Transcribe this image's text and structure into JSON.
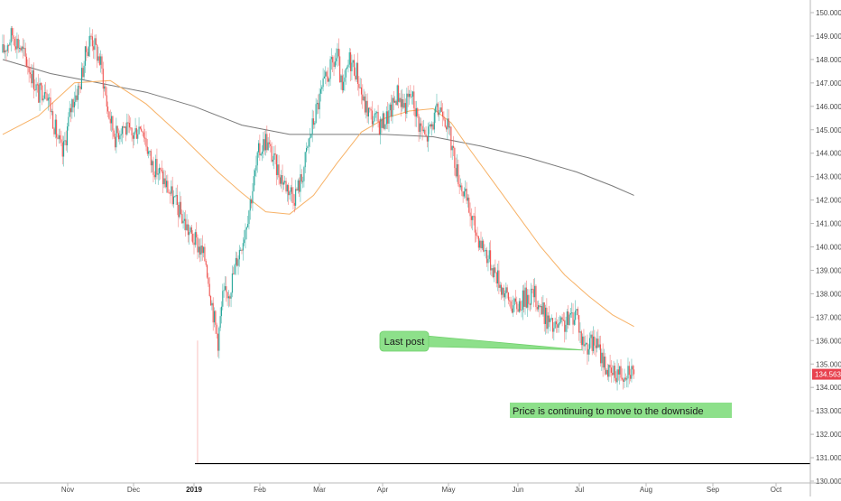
{
  "chart_data": {
    "type": "candlestick",
    "y_axis": {
      "ticks": [
        "150.000",
        "149.000",
        "148.000",
        "147.000",
        "146.000",
        "145.000",
        "144.000",
        "143.000",
        "142.000",
        "141.000",
        "140.000",
        "139.000",
        "138.000",
        "137.000",
        "136.000",
        "135.000",
        "134.000",
        "133.000",
        "132.000",
        "131.000",
        "130.000"
      ],
      "range": [
        129.6,
        150.4
      ],
      "position": "right"
    },
    "x_axis": {
      "labels": [
        {
          "text": "Nov",
          "bold": false
        },
        {
          "text": "Dec",
          "bold": false
        },
        {
          "text": "2019",
          "bold": true
        },
        {
          "text": "Feb",
          "bold": false
        },
        {
          "text": "Mar",
          "bold": false
        },
        {
          "text": "Apr",
          "bold": false
        },
        {
          "text": "May",
          "bold": false
        },
        {
          "text": "Jun",
          "bold": false
        },
        {
          "text": "Jul",
          "bold": false
        },
        {
          "text": "Aug",
          "bold": false
        },
        {
          "text": "Sep",
          "bold": false
        },
        {
          "text": "Oct",
          "bold": false
        }
      ]
    },
    "last_price": {
      "label": "134.563",
      "value": 134.563,
      "color": "#e8424f"
    },
    "support_level": {
      "value": 130.75,
      "color": "#000000"
    },
    "colors": {
      "up": "#26a69a",
      "down": "#ef5350",
      "ma_fast": "#f7b267",
      "ma_slow": "#7a7a7a"
    },
    "candles_anchor": [
      [
        0,
        148.3
      ],
      [
        8,
        149.1
      ],
      [
        14,
        148.6
      ],
      [
        22,
        147.7
      ],
      [
        30,
        146.5
      ],
      [
        36,
        146.9
      ],
      [
        44,
        145.0
      ],
      [
        50,
        143.9
      ],
      [
        58,
        146.2
      ],
      [
        64,
        146.8
      ],
      [
        70,
        148.4
      ],
      [
        74,
        149.0
      ],
      [
        82,
        147.8
      ],
      [
        88,
        145.8
      ],
      [
        94,
        144.7
      ],
      [
        100,
        145.2
      ],
      [
        108,
        144.7
      ],
      [
        116,
        145.3
      ],
      [
        124,
        143.6
      ],
      [
        132,
        143.1
      ],
      [
        140,
        142.3
      ],
      [
        148,
        141.5
      ],
      [
        156,
        140.6
      ],
      [
        164,
        140.0
      ],
      [
        170,
        139.4
      ],
      [
        176,
        137.2
      ],
      [
        180,
        136.0
      ],
      [
        184,
        137.8
      ],
      [
        190,
        138.2
      ],
      [
        196,
        139.5
      ],
      [
        202,
        140.6
      ],
      [
        208,
        142.2
      ],
      [
        214,
        144.0
      ],
      [
        220,
        144.6
      ],
      [
        228,
        143.5
      ],
      [
        236,
        142.7
      ],
      [
        244,
        142.2
      ],
      [
        250,
        142.9
      ],
      [
        256,
        144.5
      ],
      [
        262,
        145.8
      ],
      [
        268,
        146.8
      ],
      [
        274,
        147.6
      ],
      [
        280,
        148.1
      ],
      [
        284,
        146.5
      ],
      [
        290,
        148.0
      ],
      [
        296,
        147.5
      ],
      [
        302,
        146.1
      ],
      [
        308,
        145.6
      ],
      [
        316,
        145.2
      ],
      [
        324,
        145.7
      ],
      [
        330,
        146.6
      ],
      [
        336,
        146.0
      ],
      [
        342,
        146.5
      ],
      [
        348,
        145.3
      ],
      [
        354,
        144.6
      ],
      [
        358,
        145.1
      ],
      [
        364,
        145.8
      ],
      [
        368,
        146.0
      ],
      [
        374,
        144.7
      ],
      [
        380,
        143.2
      ],
      [
        388,
        141.9
      ],
      [
        396,
        140.6
      ],
      [
        404,
        139.8
      ],
      [
        412,
        138.9
      ],
      [
        420,
        138.0
      ],
      [
        428,
        137.4
      ],
      [
        436,
        137.8
      ],
      [
        444,
        138.0
      ],
      [
        452,
        137.2
      ],
      [
        460,
        136.5
      ],
      [
        468,
        136.6
      ],
      [
        474,
        136.9
      ],
      [
        480,
        137.3
      ],
      [
        484,
        136.0
      ],
      [
        490,
        135.8
      ],
      [
        496,
        135.9
      ],
      [
        502,
        135.2
      ],
      [
        508,
        134.5
      ],
      [
        514,
        134.7
      ],
      [
        518,
        134.6
      ],
      [
        524,
        134.9
      ],
      [
        528,
        134.563
      ]
    ],
    "ma_fast": [
      [
        0,
        144.8
      ],
      [
        30,
        145.6
      ],
      [
        60,
        147.0
      ],
      [
        90,
        147.1
      ],
      [
        120,
        146.1
      ],
      [
        150,
        144.7
      ],
      [
        180,
        143.2
      ],
      [
        200,
        142.3
      ],
      [
        220,
        141.5
      ],
      [
        240,
        141.4
      ],
      [
        260,
        142.2
      ],
      [
        280,
        143.6
      ],
      [
        300,
        144.9
      ],
      [
        320,
        145.5
      ],
      [
        340,
        145.8
      ],
      [
        360,
        145.9
      ],
      [
        375,
        145.3
      ],
      [
        390,
        144.2
      ],
      [
        410,
        142.8
      ],
      [
        430,
        141.4
      ],
      [
        450,
        140.0
      ],
      [
        470,
        138.8
      ],
      [
        490,
        137.9
      ],
      [
        510,
        137.1
      ],
      [
        528,
        136.6
      ]
    ],
    "ma_slow": [
      [
        0,
        148.0
      ],
      [
        40,
        147.4
      ],
      [
        80,
        147.0
      ],
      [
        120,
        146.6
      ],
      [
        160,
        146.0
      ],
      [
        200,
        145.2
      ],
      [
        240,
        144.8
      ],
      [
        280,
        144.8
      ],
      [
        320,
        144.8
      ],
      [
        360,
        144.7
      ],
      [
        400,
        144.3
      ],
      [
        440,
        143.8
      ],
      [
        480,
        143.2
      ],
      [
        510,
        142.6
      ],
      [
        528,
        142.2
      ]
    ],
    "annotations": [
      {
        "id": "last-post",
        "text": "Last post",
        "target_value": 135.6
      },
      {
        "id": "downside-note",
        "text": "Price is continuing to move to the downside"
      }
    ]
  }
}
